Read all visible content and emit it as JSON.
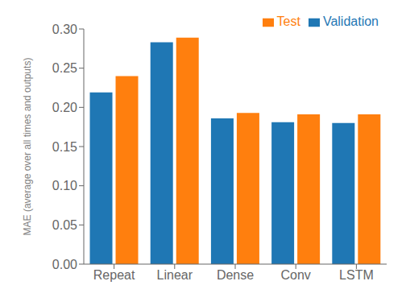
{
  "chart_data": {
    "type": "bar",
    "categories": [
      "Repeat",
      "Linear",
      "Dense",
      "Conv",
      "LSTM"
    ],
    "series": [
      {
        "name": "Validation",
        "color": "#1f77b4",
        "values": [
          0.219,
          0.283,
          0.186,
          0.181,
          0.18
        ]
      },
      {
        "name": "Test",
        "color": "#ff7f0e",
        "values": [
          0.24,
          0.289,
          0.193,
          0.191,
          0.191
        ]
      }
    ],
    "ylabel": "MAE (average over all times and outputs)",
    "ylim": [
      0.0,
      0.3
    ],
    "yticks": [
      {
        "value": 0,
        "label": "0.00"
      },
      0.05,
      {
        "value": 0.1,
        "label": "0.10"
      },
      0.15,
      {
        "value": 0.2,
        "label": "0.20"
      },
      0.25,
      {
        "value": 0.3,
        "label": "0.30"
      }
    ],
    "legend": "upper right",
    "grid": false
  }
}
